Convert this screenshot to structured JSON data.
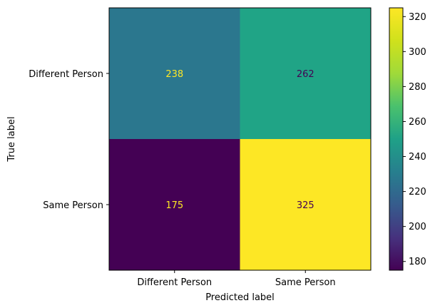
{
  "chart_data": {
    "type": "heatmap",
    "title": "",
    "xlabel": "Predicted label",
    "ylabel": "True label",
    "x_categories": [
      "Different Person",
      "Same Person"
    ],
    "y_categories": [
      "Different Person",
      "Same Person"
    ],
    "values": [
      [
        238,
        262
      ],
      [
        175,
        325
      ]
    ],
    "colormap": "viridis",
    "colorbar": {
      "min": 175,
      "max": 325,
      "ticks": [
        180,
        200,
        220,
        240,
        260,
        280,
        300,
        320
      ]
    },
    "cell_text_colors": {
      "on_dark": "#fde725",
      "on_light": "#440154"
    },
    "cell_colors": [
      "#2b778e",
      "#20a486",
      "#440154",
      "#fde725"
    ]
  }
}
